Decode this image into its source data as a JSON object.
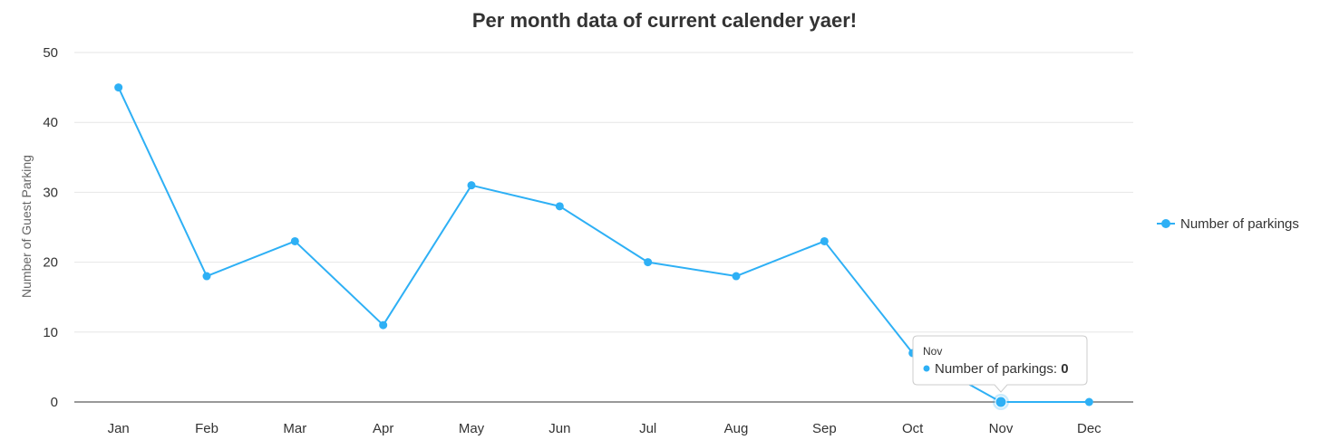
{
  "chart_data": {
    "type": "line",
    "title": "Per month data of current calender yaer!",
    "xlabel": "",
    "ylabel": "Number of Guest Parking",
    "categories": [
      "Jan",
      "Feb",
      "Mar",
      "Apr",
      "May",
      "Jun",
      "Jul",
      "Aug",
      "Sep",
      "Oct",
      "Nov",
      "Dec"
    ],
    "series": [
      {
        "name": "Number of parkings",
        "values": [
          45,
          18,
          23,
          11,
          31,
          28,
          20,
          18,
          23,
          7,
          0,
          0
        ],
        "color": "#2eb0f5"
      }
    ],
    "ylim": [
      0,
      50
    ],
    "yticks": [
      0,
      10,
      20,
      30,
      40,
      50
    ],
    "grid": true,
    "legend": "right",
    "tooltip": {
      "category": "Nov",
      "series": "Number of parkings",
      "label": "Number of parkings: ",
      "value": "0"
    }
  }
}
